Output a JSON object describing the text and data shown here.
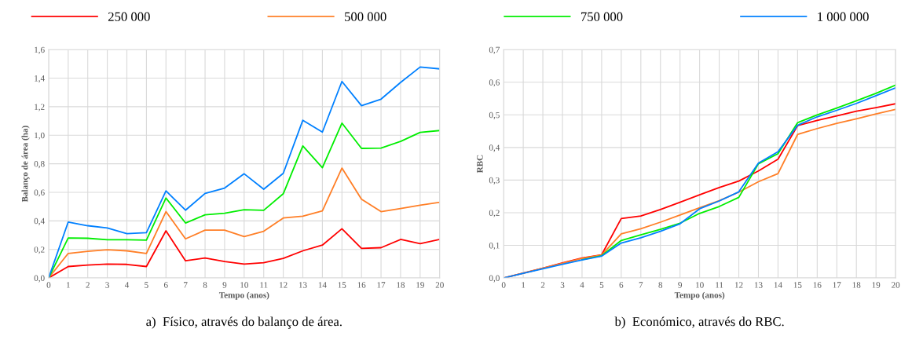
{
  "chart_data": [
    {
      "type": "line",
      "ylabel": "Balanço de área (ha)",
      "xlabel": "Tempo (anos)",
      "x": [
        0,
        1,
        2,
        3,
        4,
        5,
        6,
        7,
        8,
        9,
        10,
        11,
        12,
        13,
        14,
        15,
        16,
        17,
        18,
        19,
        20
      ],
      "xlim": [
        0,
        20
      ],
      "xticks": [
        0,
        1,
        2,
        3,
        4,
        5,
        6,
        7,
        8,
        9,
        10,
        11,
        12,
        13,
        14,
        15,
        16,
        17,
        18,
        19,
        20
      ],
      "ylim": [
        0,
        1.6
      ],
      "yticks": [
        {
          "value": 0,
          "label": "0,0"
        },
        {
          "value": 0.2,
          "label": "0,2"
        },
        {
          "value": 0.4,
          "label": "0,4"
        },
        {
          "value": 0.6,
          "label": "0,6"
        },
        {
          "value": 0.8,
          "label": "0,8"
        },
        {
          "value": 1.0,
          "label": "1,0"
        },
        {
          "value": 1.2,
          "label": "1,2"
        },
        {
          "value": 1.4,
          "label": "1,4"
        },
        {
          "value": 1.6,
          "label": "1,6"
        }
      ],
      "grid": true,
      "legend": "top",
      "marker": "none",
      "line_style": "solid",
      "annotations": [
        "a)  Físico, através do balanço de área."
      ],
      "series": [
        {
          "name": "250 000",
          "color": "#ff0000",
          "values": [
            0,
            0.08,
            0.09,
            0.097,
            0.095,
            0.08,
            0.33,
            0.12,
            0.14,
            0.115,
            0.097,
            0.107,
            0.137,
            0.19,
            0.23,
            0.345,
            0.207,
            0.212,
            0.27,
            0.24,
            0.27
          ]
        },
        {
          "name": "500 000",
          "color": "#ff7f27",
          "values": [
            0,
            0.172,
            0.187,
            0.198,
            0.19,
            0.172,
            0.465,
            0.274,
            0.335,
            0.335,
            0.29,
            0.327,
            0.42,
            0.433,
            0.47,
            0.77,
            0.552,
            0.465,
            0.487,
            0.51,
            0.53
          ]
        },
        {
          "name": "750 000",
          "color": "#00ee00",
          "values": [
            0,
            0.28,
            0.278,
            0.268,
            0.268,
            0.265,
            0.56,
            0.385,
            0.442,
            0.453,
            0.478,
            0.474,
            0.59,
            0.925,
            0.773,
            1.085,
            0.908,
            0.91,
            0.957,
            1.02,
            1.033
          ]
        },
        {
          "name": "1 000 000",
          "color": "#0080ff",
          "values": [
            0,
            0.392,
            0.366,
            0.35,
            0.31,
            0.317,
            0.61,
            0.475,
            0.592,
            0.63,
            0.73,
            0.622,
            0.733,
            1.105,
            1.022,
            1.377,
            1.207,
            1.253,
            1.37,
            1.478,
            1.465
          ]
        }
      ]
    },
    {
      "type": "line",
      "ylabel": "RBC",
      "xlabel": "Tempo (anos)",
      "x": [
        0,
        1,
        2,
        3,
        4,
        5,
        6,
        7,
        8,
        9,
        10,
        11,
        12,
        13,
        14,
        15,
        16,
        17,
        18,
        19,
        20
      ],
      "xlim": [
        0,
        20
      ],
      "xticks": [
        0,
        1,
        2,
        3,
        4,
        5,
        6,
        7,
        8,
        9,
        10,
        11,
        12,
        13,
        14,
        15,
        16,
        17,
        18,
        19,
        20
      ],
      "ylim": [
        0,
        0.7
      ],
      "yticks": [
        {
          "value": 0,
          "label": "0,0"
        },
        {
          "value": 0.1,
          "label": "0,1"
        },
        {
          "value": 0.2,
          "label": "0,2"
        },
        {
          "value": 0.3,
          "label": "0,3"
        },
        {
          "value": 0.4,
          "label": "0,4"
        },
        {
          "value": 0.5,
          "label": "0,5"
        },
        {
          "value": 0.6,
          "label": "0,6"
        },
        {
          "value": 0.7,
          "label": "0,7"
        }
      ],
      "grid": true,
      "marker": "none",
      "line_style": "solid",
      "annotations": [
        "b)  Económico, através do RBC."
      ],
      "series": [
        {
          "color": "#ff0000",
          "values": [
            0,
            0.015,
            0.03,
            0.046,
            0.061,
            0.071,
            0.182,
            0.19,
            0.21,
            0.232,
            0.255,
            0.277,
            0.297,
            0.328,
            0.364,
            0.467,
            0.483,
            0.497,
            0.511,
            0.522,
            0.534
          ]
        },
        {
          "color": "#ff7f27",
          "values": [
            0,
            0.015,
            0.03,
            0.045,
            0.06,
            0.07,
            0.135,
            0.151,
            0.171,
            0.193,
            0.215,
            0.237,
            0.263,
            0.295,
            0.32,
            0.44,
            0.458,
            0.474,
            0.488,
            0.503,
            0.517
          ]
        },
        {
          "color": "#00ee00",
          "values": [
            null,
            null,
            null,
            null,
            0.056,
            0.068,
            0.115,
            0.132,
            0.149,
            0.168,
            0.198,
            0.219,
            0.247,
            0.35,
            0.381,
            0.476,
            0.5,
            0.521,
            0.543,
            0.566,
            0.591
          ]
        },
        {
          "color": "#0080ff",
          "values": [
            0,
            0.014,
            0.028,
            0.042,
            0.055,
            0.067,
            0.107,
            0.123,
            0.143,
            0.166,
            0.212,
            0.236,
            0.264,
            0.352,
            0.387,
            0.468,
            0.494,
            0.514,
            0.535,
            0.559,
            0.583
          ]
        }
      ]
    }
  ]
}
